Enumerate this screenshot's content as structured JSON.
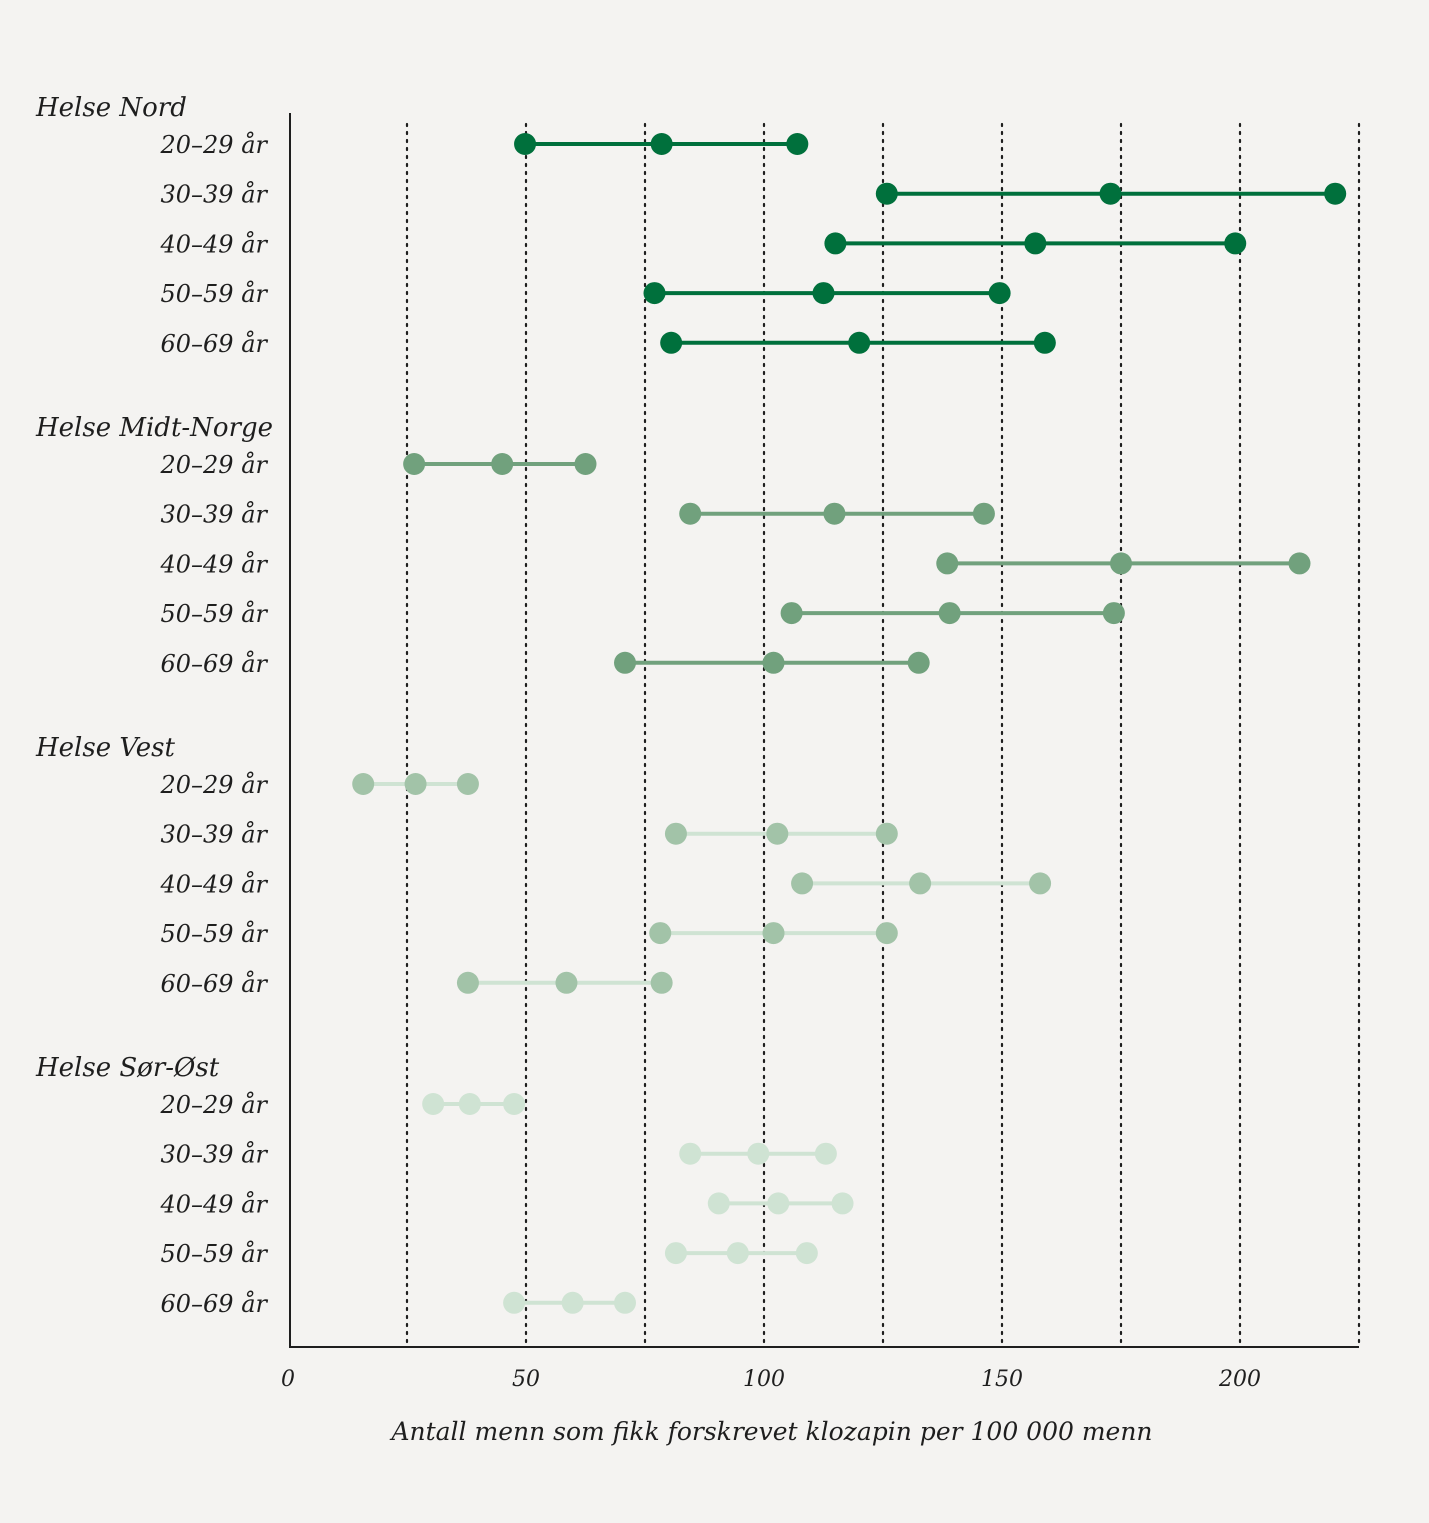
{
  "chart_data": {
    "type": "dumbbell",
    "xlabel": "Antall menn som fikk forskrevet klozapin per 100 000 menn",
    "xlim": [
      0,
      225
    ],
    "x_ticks": [
      0,
      50,
      100,
      150,
      200
    ],
    "x_tick_labels": [
      "0",
      "50",
      "100",
      "150",
      "200"
    ],
    "gridlines_at": [
      25,
      50,
      75,
      100,
      125,
      150,
      175,
      200,
      225
    ],
    "grid": "dotted vertical",
    "groups": [
      {
        "name": "Helse Nord",
        "color": "#00703c",
        "rows": [
          {
            "label": "20–29 år",
            "values": [
              49.8,
              78.5,
              107
            ]
          },
          {
            "label": "30–39 år",
            "values": [
              125.8,
              172.8,
              220
            ]
          },
          {
            "label": "40–49 år",
            "values": [
              115,
              157,
              199
            ]
          },
          {
            "label": "50–59 år",
            "values": [
              77,
              112.5,
              149.5
            ]
          },
          {
            "label": "60–69 år",
            "values": [
              80.5,
              120,
              159
            ]
          }
        ]
      },
      {
        "name": "Helse Midt-Norge",
        "color": "#71a17d",
        "rows": [
          {
            "label": "20–29 år",
            "values": [
              26.5,
              45,
              62.5
            ]
          },
          {
            "label": "30–39 år",
            "values": [
              84.5,
              114.8,
              146.2
            ]
          },
          {
            "label": "40–49 år",
            "values": [
              138.5,
              175,
              212.5
            ]
          },
          {
            "label": "50–59 år",
            "values": [
              105.8,
              139,
              173.5
            ]
          },
          {
            "label": "60–69 år",
            "values": [
              70.8,
              102,
              132.5
            ]
          }
        ]
      },
      {
        "name": "Helse Vest",
        "color": "#a2c3a8",
        "line_color": "#cfe3d3",
        "rows": [
          {
            "label": "20–29 år",
            "values": [
              15.8,
              26.8,
              37.8
            ]
          },
          {
            "label": "30–39 år",
            "values": [
              81.5,
              102.8,
              125.8
            ]
          },
          {
            "label": "40–49 år",
            "values": [
              108,
              132.8,
              158
            ]
          },
          {
            "label": "50–59 år",
            "values": [
              78.2,
              102,
              125.8
            ]
          },
          {
            "label": "60–69 år",
            "values": [
              37.8,
              58.5,
              78.5
            ]
          }
        ]
      },
      {
        "name": "Helse Sør-Øst",
        "color": "#cfe3d3",
        "rows": [
          {
            "label": "20–29 år",
            "values": [
              30.5,
              38.2,
              47.5
            ]
          },
          {
            "label": "30–39 år",
            "values": [
              84.5,
              98.8,
              113
            ]
          },
          {
            "label": "40–49 år",
            "values": [
              90.5,
              103,
              116.5
            ]
          },
          {
            "label": "50–59 år",
            "values": [
              81.5,
              94.5,
              109
            ]
          },
          {
            "label": "60–69 år",
            "values": [
              47.5,
              59.8,
              70.8
            ]
          }
        ]
      }
    ]
  },
  "colors": {
    "background": "#f4f3f1",
    "axis": "#1e1e1e",
    "grid": "#1e1e1e"
  }
}
